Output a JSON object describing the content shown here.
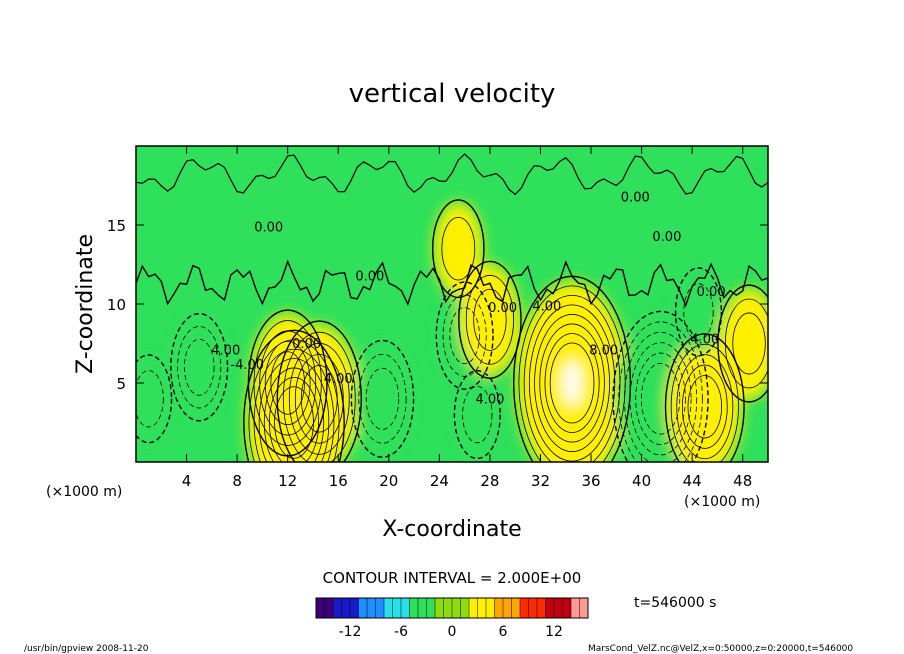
{
  "chart_data": {
    "type": "heatmap",
    "title": "vertical velocity",
    "xlabel": "X-coordinate",
    "ylabel": "Z-coordinate",
    "x_unit": "(×1000 m)",
    "x_unit_right": "(×1000 m)",
    "x_ticks": [
      4,
      8,
      12,
      16,
      20,
      24,
      28,
      32,
      36,
      40,
      44,
      48
    ],
    "y_ticks": [
      5,
      10,
      15
    ],
    "xlim": [
      0,
      50
    ],
    "ylim": [
      0,
      20
    ],
    "contour_interval_label": "CONTOUR INTERVAL = 2.000E+00",
    "time_label": "t=546000 s",
    "colorbar": {
      "ticks": [
        -12,
        -6,
        0,
        6,
        12
      ],
      "range": [
        -16,
        16
      ],
      "colors": [
        "#3a007a",
        "#1a1acc",
        "#1f8fff",
        "#29e0ea",
        "#2fe05a",
        "#8fdd10",
        "#fff000",
        "#ffa500",
        "#ff2a00",
        "#c00010",
        "#ff9a9a"
      ]
    },
    "contour_labels": [
      "0.00",
      "4.00",
      "0.00",
      "0.00",
      "0.00",
      "-4.00",
      "4.00",
      "4.00",
      "0.00",
      "4.00",
      "8.00",
      "0.00",
      "0.00",
      "4.00"
    ],
    "cells": [
      {
        "x": 5,
        "z": 6,
        "w": -5
      },
      {
        "x": 12,
        "z": 5,
        "w": 9
      },
      {
        "x": 12.5,
        "z": 2.5,
        "w": 13
      },
      {
        "x": 14.5,
        "z": 4,
        "w": 10
      },
      {
        "x": 19.5,
        "z": 4,
        "w": -6
      },
      {
        "x": 26,
        "z": 8,
        "w": -5
      },
      {
        "x": 28,
        "z": 9,
        "w": 6
      },
      {
        "x": 25.5,
        "z": 13.5,
        "w": 4
      },
      {
        "x": 27,
        "z": 3,
        "w": -3
      },
      {
        "x": 34.5,
        "z": 5,
        "w": 16
      },
      {
        "x": 41.5,
        "z": 4,
        "w": -12
      },
      {
        "x": 45,
        "z": 3.5,
        "w": 9
      },
      {
        "x": 48.5,
        "z": 7.5,
        "w": 6
      },
      {
        "x": 44.5,
        "z": 9.5,
        "w": -3
      },
      {
        "x": 1,
        "z": 4,
        "w": -3
      }
    ],
    "grid": false,
    "colorbar_placement": "bottom"
  },
  "footer": {
    "left": "/usr/bin/gpview   2008-11-20",
    "right": "MarsCond_VelZ.nc@VelZ,x=0:50000,z=0:20000,t=546000"
  }
}
